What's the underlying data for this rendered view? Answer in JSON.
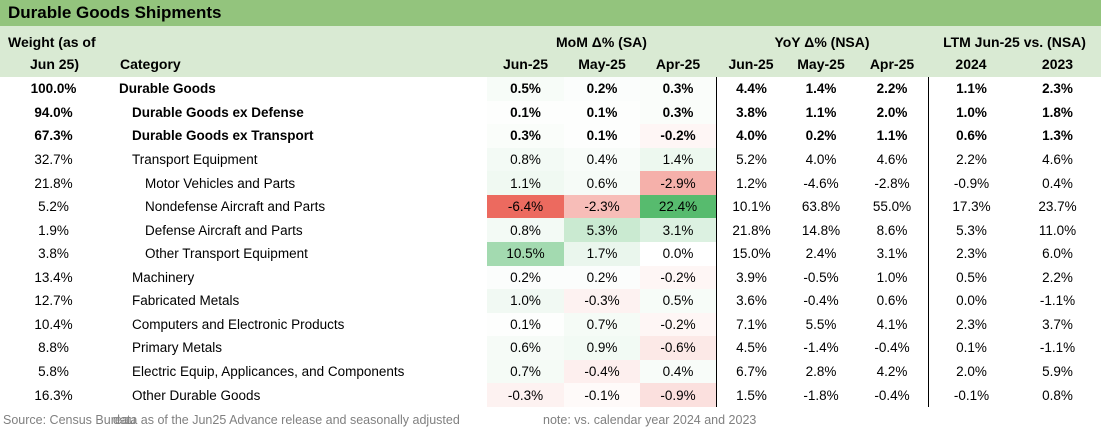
{
  "title": "Durable Goods Shipments",
  "colors": {
    "title_bar": "#93c47d",
    "header_bg": "#d9ead3",
    "heat_max_green": "#57bb6e",
    "heat_max_red": "#ec6a5f",
    "divider": "#000000",
    "footer_text": "#808080",
    "text": "#000000"
  },
  "header": {
    "weight_label_line1": "Weight (as of",
    "weight_label_line2": "Jun 25)",
    "category_label": "Category",
    "groups": [
      {
        "label": "MoM Δ% (SA)",
        "cols": [
          "Jun-25",
          "May-25",
          "Apr-25"
        ]
      },
      {
        "label": "YoY Δ% (NSA)",
        "cols": [
          "Jun-25",
          "May-25",
          "Apr-25"
        ]
      },
      {
        "label": "LTM Jun-25 vs. (NSA)",
        "cols": [
          "2024",
          "2023"
        ]
      }
    ]
  },
  "heat_scale": {
    "applies_to": "mom_columns_only",
    "max_positive": 22.4,
    "max_negative": -6.4
  },
  "chart_data": {
    "type": "table",
    "title": "Durable Goods Shipments",
    "columns": [
      "Weight (as of Jun 25)",
      "Category",
      "MoM Δ% (SA) Jun-25",
      "MoM Δ% (SA) May-25",
      "MoM Δ% (SA) Apr-25",
      "YoY Δ% (NSA) Jun-25",
      "YoY Δ% (NSA) May-25",
      "YoY Δ% (NSA) Apr-25",
      "LTM Jun-25 vs. (NSA) 2024",
      "LTM Jun-25 vs. (NSA) 2023"
    ],
    "rows": [
      {
        "weight": "100.0%",
        "category": "Durable Goods",
        "indent": 0,
        "bold": true,
        "mom": [
          "0.5%",
          "0.2%",
          "0.3%"
        ],
        "yoy": [
          "4.4%",
          "1.4%",
          "2.2%"
        ],
        "ltm": [
          "1.1%",
          "2.3%"
        ]
      },
      {
        "weight": "94.0%",
        "category": "Durable Goods ex Defense",
        "indent": 1,
        "bold": true,
        "mom": [
          "0.1%",
          "0.1%",
          "0.3%"
        ],
        "yoy": [
          "3.8%",
          "1.1%",
          "2.0%"
        ],
        "ltm": [
          "1.0%",
          "1.8%"
        ]
      },
      {
        "weight": "67.3%",
        "category": "Durable Goods ex Transport",
        "indent": 1,
        "bold": true,
        "mom": [
          "0.3%",
          "0.1%",
          "-0.2%"
        ],
        "yoy": [
          "4.0%",
          "0.2%",
          "1.1%"
        ],
        "ltm": [
          "0.6%",
          "1.3%"
        ]
      },
      {
        "weight": "32.7%",
        "category": "Transport Equipment",
        "indent": 1,
        "bold": false,
        "mom": [
          "0.8%",
          "0.4%",
          "1.4%"
        ],
        "yoy": [
          "5.2%",
          "4.0%",
          "4.6%"
        ],
        "ltm": [
          "2.2%",
          "4.6%"
        ]
      },
      {
        "weight": "21.8%",
        "category": "Motor Vehicles and Parts",
        "indent": 2,
        "bold": false,
        "mom": [
          "1.1%",
          "0.6%",
          "-2.9%"
        ],
        "yoy": [
          "1.2%",
          "-4.6%",
          "-2.8%"
        ],
        "ltm": [
          "-0.9%",
          "0.4%"
        ]
      },
      {
        "weight": "5.2%",
        "category": "Nondefense Aircraft and Parts",
        "indent": 2,
        "bold": false,
        "mom": [
          "-6.4%",
          "-2.3%",
          "22.4%"
        ],
        "yoy": [
          "10.1%",
          "63.8%",
          "55.0%"
        ],
        "ltm": [
          "17.3%",
          "23.7%"
        ]
      },
      {
        "weight": "1.9%",
        "category": "Defense Aircraft and Parts",
        "indent": 2,
        "bold": false,
        "mom": [
          "0.8%",
          "5.3%",
          "3.1%"
        ],
        "yoy": [
          "21.8%",
          "14.8%",
          "8.6%"
        ],
        "ltm": [
          "5.3%",
          "11.0%"
        ]
      },
      {
        "weight": "3.8%",
        "category": "Other Transport Equipment",
        "indent": 2,
        "bold": false,
        "mom": [
          "10.5%",
          "1.7%",
          "0.0%"
        ],
        "yoy": [
          "15.0%",
          "2.4%",
          "3.1%"
        ],
        "ltm": [
          "2.3%",
          "6.0%"
        ]
      },
      {
        "weight": "13.4%",
        "category": "Machinery",
        "indent": 1,
        "bold": false,
        "mom": [
          "0.2%",
          "0.2%",
          "-0.2%"
        ],
        "yoy": [
          "3.9%",
          "-0.5%",
          "1.0%"
        ],
        "ltm": [
          "0.5%",
          "2.2%"
        ]
      },
      {
        "weight": "12.7%",
        "category": "Fabricated Metals",
        "indent": 1,
        "bold": false,
        "mom": [
          "1.0%",
          "-0.3%",
          "0.5%"
        ],
        "yoy": [
          "3.6%",
          "-0.4%",
          "0.6%"
        ],
        "ltm": [
          "0.0%",
          "-1.1%"
        ]
      },
      {
        "weight": "10.4%",
        "category": "Computers and Electronic Products",
        "indent": 1,
        "bold": false,
        "mom": [
          "0.1%",
          "0.7%",
          "-0.2%"
        ],
        "yoy": [
          "7.1%",
          "5.5%",
          "4.1%"
        ],
        "ltm": [
          "2.3%",
          "3.7%"
        ]
      },
      {
        "weight": "8.8%",
        "category": "Primary Metals",
        "indent": 1,
        "bold": false,
        "mom": [
          "0.6%",
          "0.9%",
          "-0.6%"
        ],
        "yoy": [
          "4.5%",
          "-1.4%",
          "-0.4%"
        ],
        "ltm": [
          "0.1%",
          "-1.1%"
        ]
      },
      {
        "weight": "5.8%",
        "category": "Electric Equip, Applicances, and Components",
        "indent": 1,
        "bold": false,
        "mom": [
          "0.7%",
          "-0.4%",
          "0.4%"
        ],
        "yoy": [
          "6.7%",
          "2.8%",
          "4.2%"
        ],
        "ltm": [
          "2.0%",
          "5.9%"
        ]
      },
      {
        "weight": "16.3%",
        "category": "Other Durable Goods",
        "indent": 1,
        "bold": false,
        "mom": [
          "-0.3%",
          "-0.1%",
          "-0.9%"
        ],
        "yoy": [
          "1.5%",
          "-1.8%",
          "-0.4%"
        ],
        "ltm": [
          "-0.1%",
          "0.8%"
        ]
      }
    ]
  },
  "footer": {
    "source": "Source: Census Bureau",
    "data_note": "data as of the Jun25 Advance release and seasonally adjusted",
    "note": "note: vs. calendar year 2024 and 2023"
  }
}
